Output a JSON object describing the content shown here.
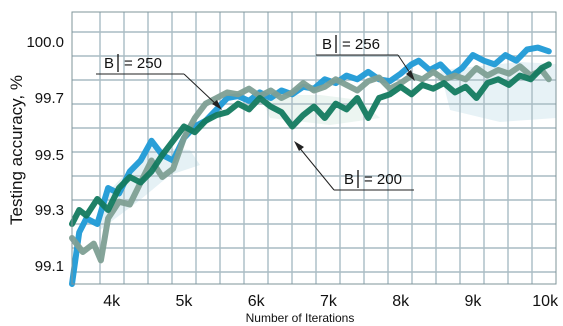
{
  "chart_data": {
    "type": "line",
    "title": "",
    "xlabel": "Number of Iterations",
    "ylabel": "Testing accuracy, %",
    "x_ticks": [
      4000,
      5000,
      6000,
      7000,
      8000,
      9000,
      10000
    ],
    "x_tick_labels": [
      "4k",
      "5k",
      "6k",
      "7k",
      "8k",
      "9k",
      "10k"
    ],
    "y_ticks": [
      99.1,
      99.3,
      99.5,
      99.7,
      100.0
    ],
    "y_tick_labels": [
      "99.1",
      "99.3",
      "99.5",
      "99.7",
      "100.0"
    ],
    "xlim": [
      3450,
      10150
    ],
    "grid": true,
    "annotations": [
      {
        "label": "B",
        "value": "= 250",
        "series_index": 1
      },
      {
        "label": "B",
        "value": "= 256",
        "series_index": 0
      },
      {
        "label": "B",
        "value": "= 200",
        "series_index": 2
      }
    ],
    "series": [
      {
        "color": "#1f9ad6",
        "points": [
          [
            3450,
            98.97
          ],
          [
            3550,
            99.22
          ],
          [
            3650,
            99.27
          ],
          [
            3800,
            99.25
          ],
          [
            3950,
            99.38
          ],
          [
            4100,
            99.36
          ],
          [
            4250,
            99.44
          ],
          [
            4400,
            99.48
          ],
          [
            4550,
            99.55
          ],
          [
            4700,
            99.5
          ],
          [
            4850,
            99.48
          ],
          [
            5000,
            99.56
          ],
          [
            5150,
            99.6
          ],
          [
            5300,
            99.62
          ],
          [
            5450,
            99.66
          ],
          [
            5600,
            99.7
          ],
          [
            5750,
            99.71
          ],
          [
            5900,
            99.69
          ],
          [
            6050,
            99.73
          ],
          [
            6200,
            99.7
          ],
          [
            6350,
            99.74
          ],
          [
            6500,
            99.72
          ],
          [
            6650,
            99.76
          ],
          [
            6800,
            99.75
          ],
          [
            6950,
            99.8
          ],
          [
            7100,
            99.78
          ],
          [
            7250,
            99.82
          ],
          [
            7400,
            99.8
          ],
          [
            7550,
            99.84
          ],
          [
            7700,
            99.8
          ],
          [
            7850,
            99.79
          ],
          [
            8000,
            99.83
          ],
          [
            8150,
            99.88
          ],
          [
            8250,
            99.9
          ],
          [
            8400,
            99.85
          ],
          [
            8550,
            99.88
          ],
          [
            8700,
            99.82
          ],
          [
            8850,
            99.86
          ],
          [
            9000,
            99.93
          ],
          [
            9150,
            99.9
          ],
          [
            9300,
            99.88
          ],
          [
            9450,
            99.93
          ],
          [
            9600,
            99.9
          ],
          [
            9750,
            99.96
          ],
          [
            9900,
            99.97
          ],
          [
            10050,
            99.95
          ]
        ]
      },
      {
        "color": "#7e9f94",
        "points": [
          [
            3450,
            99.2
          ],
          [
            3600,
            99.15
          ],
          [
            3750,
            99.18
          ],
          [
            3850,
            99.12
          ],
          [
            3950,
            99.27
          ],
          [
            4100,
            99.33
          ],
          [
            4250,
            99.32
          ],
          [
            4400,
            99.4
          ],
          [
            4550,
            99.48
          ],
          [
            4700,
            99.42
          ],
          [
            4850,
            99.45
          ],
          [
            5000,
            99.56
          ],
          [
            5150,
            99.63
          ],
          [
            5300,
            99.68
          ],
          [
            5450,
            99.7
          ],
          [
            5600,
            99.73
          ],
          [
            5750,
            99.72
          ],
          [
            5900,
            99.75
          ],
          [
            6050,
            99.71
          ],
          [
            6200,
            99.74
          ],
          [
            6350,
            99.7
          ],
          [
            6500,
            99.73
          ],
          [
            6650,
            99.78
          ],
          [
            6800,
            99.74
          ],
          [
            6950,
            99.76
          ],
          [
            7100,
            99.8
          ],
          [
            7250,
            99.77
          ],
          [
            7400,
            99.74
          ],
          [
            7550,
            99.79
          ],
          [
            7700,
            99.81
          ],
          [
            7850,
            99.75
          ],
          [
            8000,
            99.78
          ],
          [
            8150,
            99.82
          ],
          [
            8300,
            99.8
          ],
          [
            8450,
            99.84
          ],
          [
            8600,
            99.8
          ],
          [
            8750,
            99.82
          ],
          [
            8900,
            99.8
          ],
          [
            9050,
            99.86
          ],
          [
            9200,
            99.82
          ],
          [
            9350,
            99.85
          ],
          [
            9500,
            99.83
          ],
          [
            9650,
            99.87
          ],
          [
            9800,
            99.82
          ],
          [
            9950,
            99.85
          ],
          [
            10050,
            99.8
          ]
        ]
      },
      {
        "color": "#137a5f",
        "points": [
          [
            3450,
            99.25
          ],
          [
            3550,
            99.3
          ],
          [
            3650,
            99.28
          ],
          [
            3800,
            99.34
          ],
          [
            3950,
            99.3
          ],
          [
            4100,
            99.38
          ],
          [
            4250,
            99.42
          ],
          [
            4400,
            99.4
          ],
          [
            4550,
            99.44
          ],
          [
            4700,
            99.5
          ],
          [
            4850,
            99.55
          ],
          [
            5000,
            99.6
          ],
          [
            5150,
            99.58
          ],
          [
            5300,
            99.62
          ],
          [
            5450,
            99.64
          ],
          [
            5600,
            99.65
          ],
          [
            5750,
            99.68
          ],
          [
            5900,
            99.66
          ],
          [
            6050,
            99.7
          ],
          [
            6200,
            99.67
          ],
          [
            6350,
            99.65
          ],
          [
            6500,
            99.6
          ],
          [
            6650,
            99.64
          ],
          [
            6800,
            99.67
          ],
          [
            6950,
            99.63
          ],
          [
            7100,
            99.68
          ],
          [
            7250,
            99.66
          ],
          [
            7400,
            99.7
          ],
          [
            7550,
            99.63
          ],
          [
            7700,
            99.7
          ],
          [
            7850,
            99.72
          ],
          [
            8000,
            99.76
          ],
          [
            8150,
            99.72
          ],
          [
            8300,
            99.77
          ],
          [
            8450,
            99.75
          ],
          [
            8600,
            99.78
          ],
          [
            8750,
            99.73
          ],
          [
            8900,
            99.76
          ],
          [
            9050,
            99.7
          ],
          [
            9200,
            99.78
          ],
          [
            9350,
            99.8
          ],
          [
            9500,
            99.77
          ],
          [
            9650,
            99.82
          ],
          [
            9800,
            99.8
          ],
          [
            9950,
            99.86
          ],
          [
            10050,
            99.88
          ]
        ]
      }
    ]
  }
}
